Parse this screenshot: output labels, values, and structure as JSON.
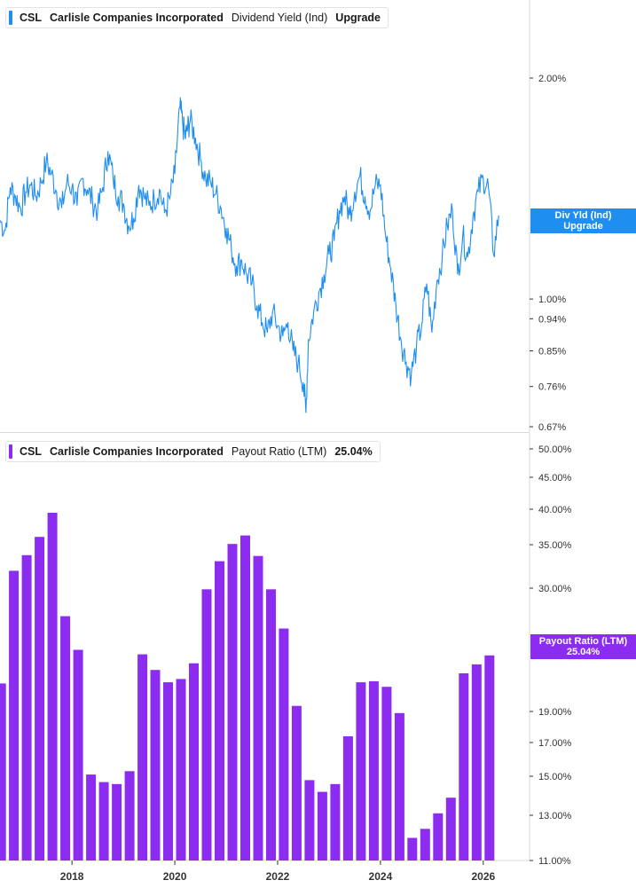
{
  "colors": {
    "line": "#1f8ef1",
    "bar": "#8c2cf0",
    "axis": "#333333",
    "grid": "#d9d9d9"
  },
  "top": {
    "ticker": "CSL",
    "company": "Carlisle Companies Incorporated",
    "metric": "Dividend Yield (Ind)",
    "value": "Upgrade",
    "flag_line1": "Div Yld (Ind)",
    "flag_line2": "Upgrade",
    "flag_value": 1.28
  },
  "bottom": {
    "ticker": "CSL",
    "company": "Carlisle Companies Incorporated",
    "metric": "Payout Ratio (LTM)",
    "value": "25.04%",
    "flag_line1": "Payout Ratio (LTM)",
    "flag_line2": "25.04%",
    "flag_value": 25.04
  },
  "chart_data": [
    {
      "type": "line",
      "title": "",
      "series": [
        {
          "name": "Dividend Yield (Ind)",
          "x": [
            2016.6,
            2016.7,
            2016.8,
            2016.9,
            2017.0,
            2017.1,
            2017.2,
            2017.3,
            2017.4,
            2017.5,
            2017.6,
            2017.7,
            2017.8,
            2017.9,
            2018.0,
            2018.1,
            2018.2,
            2018.3,
            2018.4,
            2018.5,
            2018.6,
            2018.7,
            2018.8,
            2018.9,
            2019.0,
            2019.1,
            2019.2,
            2019.3,
            2019.4,
            2019.5,
            2019.6,
            2019.7,
            2019.8,
            2019.9,
            2020.0,
            2020.1,
            2020.15,
            2020.2,
            2020.25,
            2020.3,
            2020.4,
            2020.5,
            2020.6,
            2020.7,
            2020.8,
            2020.9,
            2021.0,
            2021.1,
            2021.2,
            2021.3,
            2021.4,
            2021.5,
            2021.6,
            2021.7,
            2021.8,
            2021.9,
            2022.0,
            2022.1,
            2022.2,
            2022.3,
            2022.4,
            2022.5,
            2022.55,
            2022.6,
            2022.7,
            2022.8,
            2022.9,
            2023.0,
            2023.1,
            2023.2,
            2023.3,
            2023.4,
            2023.5,
            2023.6,
            2023.7,
            2023.8,
            2023.9,
            2024.0,
            2024.1,
            2024.2,
            2024.3,
            2024.4,
            2024.5,
            2024.6,
            2024.7,
            2024.8,
            2024.9,
            2025.0,
            2025.1,
            2025.2,
            2025.3,
            2025.4,
            2025.5,
            2025.6,
            2025.7,
            2025.8,
            2025.9,
            2026.0,
            2026.1,
            2026.2,
            2026.3
          ],
          "values": [
            1.28,
            1.24,
            1.42,
            1.38,
            1.33,
            1.4,
            1.43,
            1.38,
            1.44,
            1.54,
            1.48,
            1.4,
            1.33,
            1.44,
            1.42,
            1.34,
            1.46,
            1.41,
            1.36,
            1.32,
            1.42,
            1.59,
            1.46,
            1.38,
            1.35,
            1.26,
            1.29,
            1.43,
            1.38,
            1.34,
            1.37,
            1.41,
            1.31,
            1.37,
            1.48,
            1.83,
            1.74,
            1.66,
            1.71,
            1.75,
            1.66,
            1.55,
            1.46,
            1.44,
            1.39,
            1.33,
            1.25,
            1.17,
            1.11,
            1.13,
            1.08,
            1.05,
            0.98,
            0.93,
            0.9,
            0.96,
            0.92,
            0.89,
            0.93,
            0.85,
            0.82,
            0.77,
            0.7,
            0.88,
            0.96,
            1.02,
            1.08,
            1.15,
            1.2,
            1.32,
            1.38,
            1.3,
            1.4,
            1.47,
            1.38,
            1.32,
            1.43,
            1.43,
            1.22,
            1.1,
            0.98,
            0.88,
            0.82,
            0.79,
            0.86,
            0.92,
            1.05,
            0.9,
            1.06,
            1.14,
            1.26,
            1.32,
            1.08,
            1.22,
            1.14,
            1.3,
            1.4,
            1.46,
            1.42,
            1.15,
            1.3
          ]
        }
      ],
      "axis": "log",
      "y_ticks": [
        "2.00%",
        "1.00%",
        "0.94%",
        "0.85%",
        "0.76%",
        "0.67%"
      ],
      "y_tick_values": [
        2.0,
        1.0,
        0.94,
        0.85,
        0.76,
        0.67
      ],
      "xlim": [
        2016.6,
        2026.9
      ],
      "ylim": [
        0.67,
        2.1
      ],
      "grid": false,
      "legend": "top-left"
    },
    {
      "type": "bar",
      "series": [
        {
          "name": "Payout Ratio (LTM)",
          "x": [
            2016.62,
            2016.87,
            2017.12,
            2017.37,
            2017.62,
            2017.87,
            2018.12,
            2018.37,
            2018.62,
            2018.87,
            2019.12,
            2019.37,
            2019.62,
            2019.87,
            2020.12,
            2020.37,
            2020.62,
            2020.87,
            2021.12,
            2021.37,
            2021.62,
            2021.87,
            2022.12,
            2022.37,
            2022.62,
            2022.87,
            2023.12,
            2023.37,
            2023.62,
            2023.87,
            2024.12,
            2024.37,
            2024.62,
            2024.87,
            2025.12,
            2025.37,
            2025.62,
            2025.87,
            2026.12
          ],
          "values": [
            21.5,
            32.0,
            33.8,
            36.1,
            39.5,
            27.5,
            24.5,
            15.1,
            14.7,
            14.6,
            15.3,
            24.1,
            22.7,
            21.6,
            21.9,
            23.3,
            29.9,
            33.1,
            35.1,
            36.3,
            33.7,
            29.9,
            26.4,
            19.5,
            14.8,
            14.2,
            14.6,
            17.4,
            21.6,
            21.7,
            21.2,
            18.9,
            12.0,
            12.4,
            13.1,
            13.9,
            22.4,
            23.2,
            24.0
          ]
        }
      ],
      "x_ticks": [
        "2018",
        "2020",
        "2022",
        "2024",
        "2026"
      ],
      "x_tick_values": [
        2018,
        2020,
        2022,
        2024,
        2026
      ],
      "y_ticks": [
        "50.00%",
        "45.00%",
        "40.00%",
        "35.00%",
        "30.00%",
        "19.00%",
        "17.00%",
        "15.00%",
        "13.00%",
        "11.00%"
      ],
      "y_tick_values": [
        50,
        45,
        40,
        35,
        30,
        19,
        17,
        15,
        13,
        11
      ],
      "xlim": [
        2016.6,
        2026.9
      ],
      "ylim": [
        11,
        51
      ],
      "grid": false,
      "legend": "top-left"
    }
  ]
}
